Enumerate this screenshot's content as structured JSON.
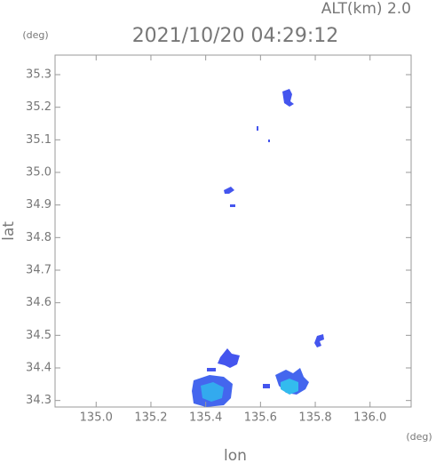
{
  "chart_data": {
    "type": "map",
    "title": "2021/10/20 04:29:12",
    "subtitle": "ALT(km) 2.0",
    "x_label": "lon",
    "y_label": "lat",
    "x_unit": "(deg)",
    "y_unit": "(deg)",
    "xlim": [
      134.85,
      136.15
    ],
    "ylim": [
      34.28,
      35.36
    ],
    "xticks": [
      {
        "value": 135.0,
        "label": "135.0"
      },
      135.2,
      135.4,
      135.6,
      135.8,
      {
        "value": 136.0,
        "label": "136.0"
      }
    ],
    "yticks": [
      34.3,
      34.4,
      34.5,
      34.6,
      34.7,
      34.8,
      34.9,
      {
        "value": 35.0,
        "label": "35.0"
      },
      35.1,
      35.2,
      35.3
    ]
  }
}
